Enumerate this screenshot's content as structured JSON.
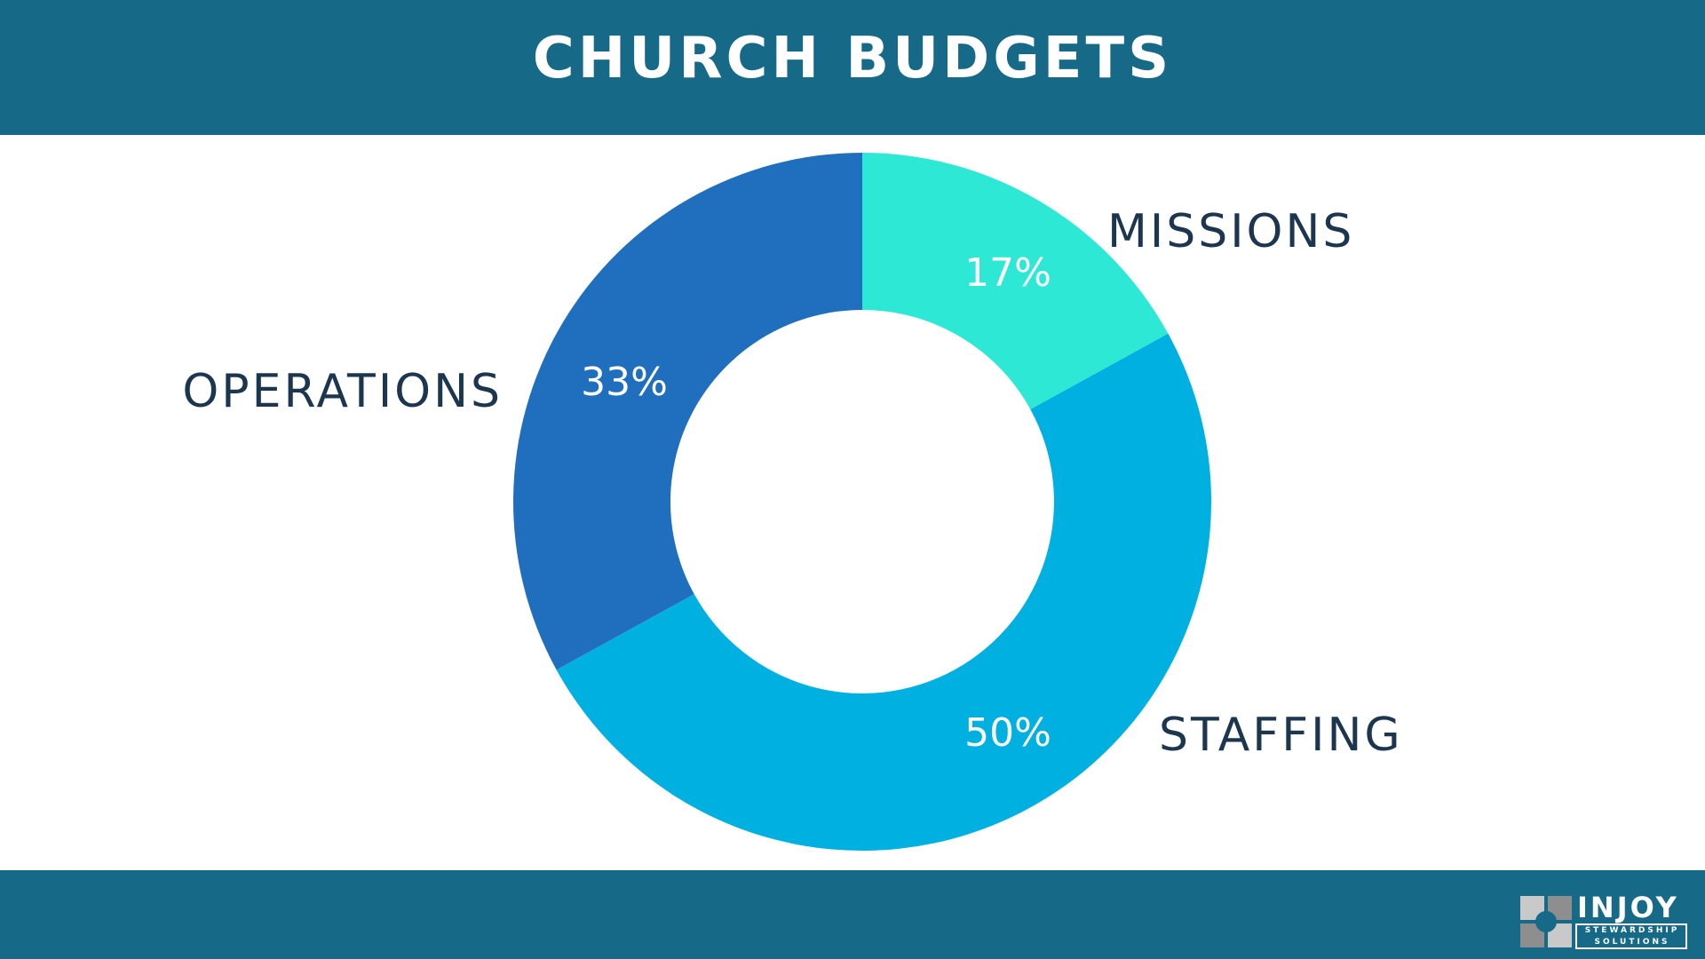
{
  "header": {
    "title": "CHURCH BUDGETS"
  },
  "chart_data": {
    "type": "pie",
    "title": "CHURCH BUDGETS",
    "categories": [
      "MISSIONS",
      "STAFFING",
      "OPERATIONS"
    ],
    "values": [
      17,
      50,
      33
    ],
    "value_labels": [
      "17%",
      "50%",
      "33%"
    ],
    "colors": [
      "#2ee8d6",
      "#00b0e0",
      "#206fbe"
    ],
    "donut": true,
    "start_angle": "12 o'clock, clockwise",
    "label_color": "#1d3650",
    "value_label_color": "#ffffff"
  },
  "colors": {
    "band": "#176988",
    "background": "#ffffff"
  },
  "logo": {
    "word": "INJOY",
    "line1": "STEWARDSHIP",
    "line2": "SOLUTIONS"
  }
}
